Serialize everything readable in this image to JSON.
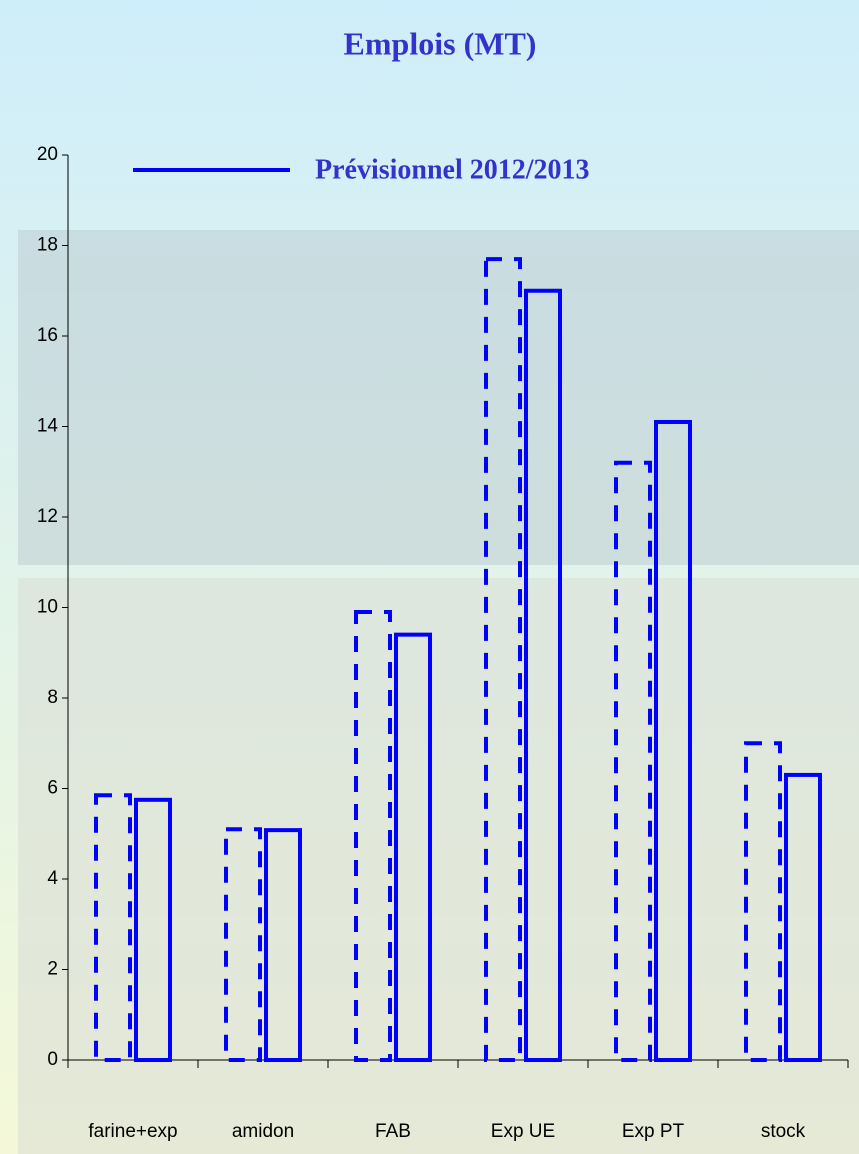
{
  "chart_data": {
    "type": "bar",
    "title": "Emplois (MT)",
    "categories": [
      "farine+exp",
      "amidon",
      "FAB",
      "Exp UE",
      "Exp PT",
      "stock"
    ],
    "series": [
      {
        "color": "#0000ff",
        "dashed": true,
        "values": [
          5.85,
          5.1,
          9.9,
          17.7,
          13.2,
          7.0
        ]
      },
      {
        "name": "Prévisionnel 2012/2013",
        "color": "#0000ff",
        "values": [
          5.75,
          5.08,
          9.4,
          17.0,
          14.1,
          6.3
        ]
      }
    ],
    "ylim": [
      0,
      20
    ],
    "yticks": [
      0,
      2,
      4,
      6,
      8,
      10,
      12,
      14,
      16,
      18,
      20
    ],
    "grid": false
  }
}
